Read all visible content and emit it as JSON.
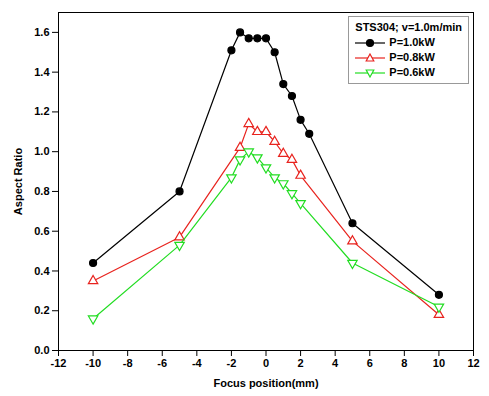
{
  "chart_data": {
    "type": "line",
    "x_label": "Focus position(mm)",
    "y_label": "Aspect Ratio",
    "legend_title": "STS304; v=1.0m/min",
    "legend": "top-right",
    "xlim": [
      -12,
      12
    ],
    "xticks": [
      -12,
      -10,
      -8,
      -6,
      -4,
      -2,
      0,
      2,
      4,
      6,
      8,
      10,
      12
    ],
    "ylim": [
      0,
      1.7
    ],
    "yticks": [
      {
        "value": 0,
        "label": "0.0"
      },
      {
        "value": 0.2,
        "label": "0.2"
      },
      {
        "value": 0.4,
        "label": "0.4"
      },
      {
        "value": 0.6,
        "label": "0.6"
      },
      {
        "value": 0.8,
        "label": "0.8"
      },
      {
        "value": 1.0,
        "label": "1.0"
      },
      {
        "value": 1.2,
        "label": "1.2"
      },
      {
        "value": 1.4,
        "label": "1.4"
      },
      {
        "value": 1.6,
        "label": "1.6"
      }
    ],
    "series": [
      {
        "name": "P=1.0kW",
        "color": "#000000",
        "marker": "circle-filled",
        "x": [
          -10,
          -5,
          -2,
          -1.5,
          -1,
          -0.5,
          0,
          0.5,
          1,
          1.5,
          2,
          2.5,
          5,
          10
        ],
        "values": [
          0.44,
          0.8,
          1.51,
          1.6,
          1.57,
          1.57,
          1.57,
          1.5,
          1.34,
          1.28,
          1.16,
          1.09,
          0.64,
          0.28
        ]
      },
      {
        "name": "P=0.8kW",
        "color": "#e8231e",
        "marker": "triangle-open",
        "x": [
          -10,
          -5,
          -1.5,
          -1,
          -0.5,
          0,
          0.5,
          1,
          1.5,
          2,
          5,
          10
        ],
        "values": [
          0.35,
          0.57,
          1.02,
          1.14,
          1.1,
          1.1,
          1.05,
          0.99,
          0.96,
          0.88,
          0.55,
          0.18
        ]
      },
      {
        "name": "P=0.6kW",
        "color": "#22dd22",
        "marker": "triangle-down-open",
        "x": [
          -10,
          -5,
          -2,
          -1.5,
          -1,
          -0.5,
          0,
          0.5,
          1,
          1.5,
          2,
          5,
          10
        ],
        "values": [
          0.16,
          0.53,
          0.87,
          0.96,
          1.0,
          0.97,
          0.92,
          0.87,
          0.84,
          0.79,
          0.74,
          0.44,
          0.22
        ]
      }
    ]
  }
}
